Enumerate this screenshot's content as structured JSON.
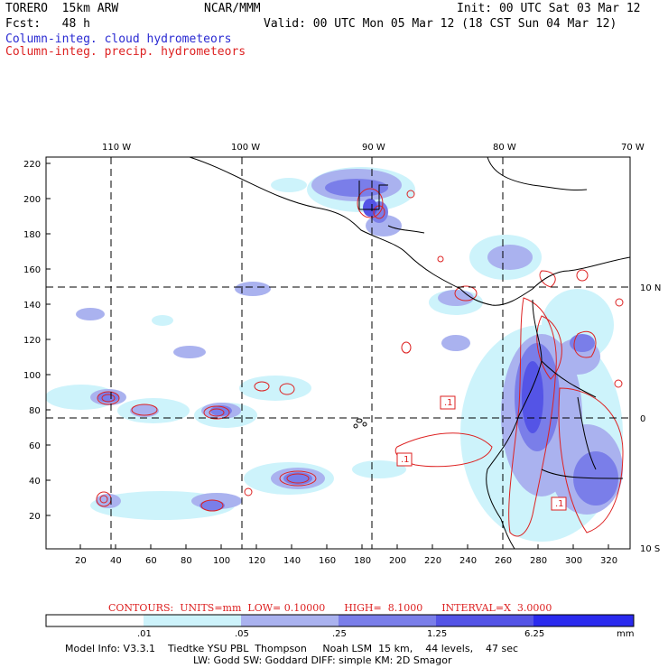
{
  "header": {
    "model": "TORERO  15km ARW",
    "center": "NCAR/MMM",
    "init": "Init: 00 UTC Sat 03 Mar 12",
    "fcst": "Fcst:   48 h",
    "valid": "Valid: 00 UTC Mon 05 Mar 12 (18 CST Sun 04 Mar 12)",
    "field1": "Column-integ. cloud hydrometeors",
    "field2": "Column-integ. precip. hydrometeors"
  },
  "colors": {
    "cloud": "#2a2ad2",
    "precip": "#dd2222",
    "bins": [
      "#ffffff",
      "#cdf3fb",
      "#aab2ef",
      "#7a7ee9",
      "#5454e6",
      "#2a2aee"
    ]
  },
  "map": {
    "top_labels": [
      "110 W",
      "100 W",
      "90 W",
      "80 W",
      "70 W"
    ],
    "right_labels": [
      "10 N",
      "0",
      "10 S"
    ],
    "y_ticks": [
      "220",
      "200",
      "180",
      "160",
      "140",
      "120",
      "100",
      "80",
      "60",
      "40",
      "20"
    ],
    "x_ticks": [
      "20",
      "40",
      "60",
      "80",
      "100",
      "120",
      "140",
      "160",
      "180",
      "200",
      "220",
      "240",
      "260",
      "280",
      "300",
      "320"
    ],
    "box_labels": [
      ".1",
      ".1",
      ".1"
    ]
  },
  "contours_note": "CONTOURS:  UNITS=mm  LOW= 0.10000      HIGH=  8.1000      INTERVAL=X  3.0000",
  "colorbar": {
    "labels": [
      ".01",
      ".05",
      ".25",
      "1.25",
      "6.25"
    ],
    "unit": "mm"
  },
  "footer": {
    "line1": "Model Info: V3.3.1    Tiedtke YSU PBL  Thompson     Noah LSM  15 km,    44 levels,    47 sec",
    "line2": "LW: Godd SW: Goddard DIFF: simple KM: 2D Smagor"
  }
}
